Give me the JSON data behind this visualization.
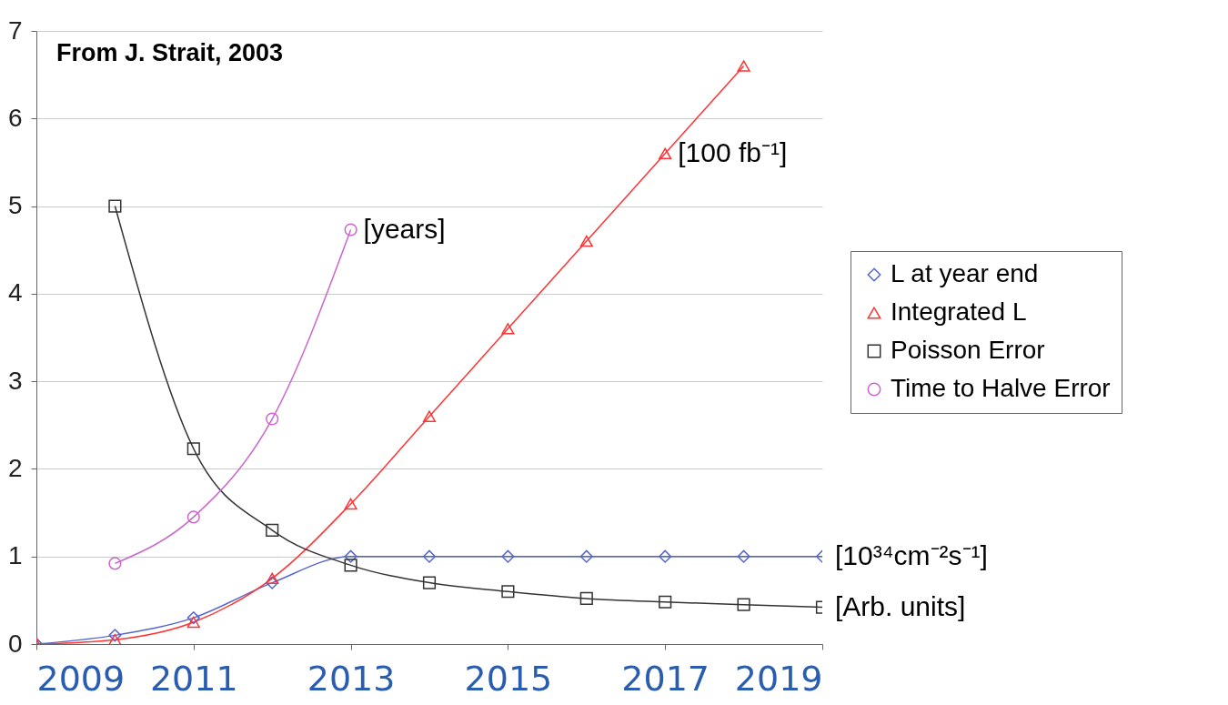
{
  "chart_data": {
    "type": "line",
    "x": [
      2009,
      2010,
      2011,
      2012,
      2013,
      2014,
      2015,
      2016,
      2017,
      2018,
      2019
    ],
    "series": [
      {
        "name": "L at year end",
        "color": "#5566cc",
        "marker": "diamond",
        "values": [
          0,
          0.1,
          0.3,
          0.7,
          1.0,
          1.0,
          1.0,
          1.0,
          1.0,
          1.0,
          1.0
        ]
      },
      {
        "name": "Integrated L",
        "color": "#ff3333",
        "marker": "triangle",
        "values": [
          0,
          0.05,
          0.25,
          0.75,
          1.6,
          2.6,
          3.6,
          4.6,
          5.6,
          6.6,
          null
        ]
      },
      {
        "name": "Poisson Error",
        "color": "#333333",
        "marker": "square",
        "values": [
          null,
          5.0,
          2.23,
          1.3,
          0.9,
          0.7,
          0.6,
          0.52,
          0.48,
          0.45,
          0.42
        ]
      },
      {
        "name": "Time to Halve Error",
        "color": "#cc66cc",
        "marker": "circle",
        "values": [
          null,
          0.92,
          1.45,
          2.57,
          4.73,
          null,
          null,
          null,
          null,
          null,
          null
        ]
      }
    ],
    "xlim": [
      2009,
      2019
    ],
    "xticks": [
      2009,
      2011,
      2013,
      2015,
      2017,
      2019
    ],
    "ylim": [
      0,
      7
    ],
    "yticks": [
      0,
      1,
      2,
      3,
      4,
      5,
      6,
      7
    ],
    "grid": "y",
    "legend": "right",
    "annotations": [
      "From J. Strait, 2003",
      {
        "text": "[100 fb⁻¹]",
        "x": 2017,
        "y": 5.6
      },
      {
        "text": "[years]",
        "x": 2013,
        "y": 4.73
      },
      {
        "text": "[10³⁴cm⁻²s⁻¹]",
        "x": 2019,
        "y": 1.0
      },
      {
        "text": "[Arb. units]",
        "x": 2019,
        "y": 0.42
      }
    ]
  }
}
